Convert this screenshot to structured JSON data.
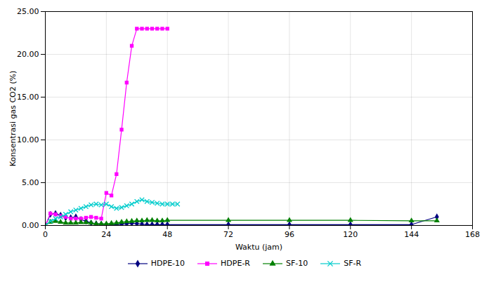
{
  "chart_data": {
    "type": "line",
    "xlabel": "Waktu (jam)",
    "ylabel": "Konsentrasi gas CO2 (%)",
    "xlim": [
      0,
      168
    ],
    "ylim": [
      0,
      25
    ],
    "xticks": [
      0,
      24,
      48,
      72,
      96,
      120,
      144,
      168
    ],
    "yticks": [
      {
        "value": 0.0,
        "label": "0.00"
      },
      {
        "value": 5.0,
        "label": "5.00"
      },
      {
        "value": 10.0,
        "label": "10.00"
      },
      {
        "value": 15.0,
        "label": "15.00"
      },
      {
        "value": 20.0,
        "label": "20.00"
      },
      {
        "value": 25.0,
        "label": "25.00"
      }
    ],
    "grid": true,
    "legend": "bottom",
    "series": [
      {
        "name": "HDPE-10",
        "color": "#000080",
        "marker": "diamond",
        "x": [
          0,
          2,
          4,
          6,
          8,
          10,
          12,
          14,
          16,
          18,
          20,
          22,
          24,
          26,
          28,
          30,
          32,
          34,
          36,
          38,
          40,
          42,
          44,
          46,
          48,
          72,
          96,
          120,
          144,
          154
        ],
        "values": [
          0.0,
          1.3,
          1.4,
          1.2,
          0.9,
          0.9,
          1.0,
          0.7,
          0.5,
          0.3,
          0.2,
          0.15,
          0.1,
          0.05,
          0.1,
          0.15,
          0.2,
          0.25,
          0.2,
          0.15,
          0.1,
          0.1,
          0.1,
          0.1,
          0.1,
          0.1,
          0.1,
          0.1,
          0.1,
          1.0
        ]
      },
      {
        "name": "HDPE-R",
        "color": "#FF00FF",
        "marker": "square",
        "x": [
          0,
          2,
          4,
          6,
          8,
          10,
          12,
          14,
          16,
          18,
          20,
          22,
          24,
          26,
          28,
          30,
          32,
          34,
          36,
          38,
          40,
          42,
          44,
          46,
          48
        ],
        "values": [
          0.0,
          1.4,
          1.3,
          1.1,
          1.0,
          0.8,
          0.8,
          0.8,
          0.9,
          1.0,
          0.9,
          0.8,
          3.8,
          3.5,
          6.0,
          11.2,
          16.7,
          21.0,
          23.0,
          23.0,
          23.0,
          23.0,
          23.0,
          23.0,
          23.0
        ]
      },
      {
        "name": "SF-10",
        "color": "#008000",
        "marker": "triangle",
        "x": [
          0,
          2,
          4,
          6,
          8,
          10,
          12,
          14,
          16,
          18,
          20,
          22,
          24,
          26,
          28,
          30,
          32,
          34,
          36,
          38,
          40,
          42,
          44,
          46,
          48,
          72,
          96,
          120,
          144,
          154
        ],
        "values": [
          0.0,
          0.4,
          0.5,
          0.4,
          0.3,
          0.3,
          0.3,
          0.35,
          0.35,
          0.3,
          0.2,
          0.2,
          0.2,
          0.25,
          0.3,
          0.4,
          0.45,
          0.5,
          0.55,
          0.55,
          0.6,
          0.6,
          0.55,
          0.55,
          0.6,
          0.6,
          0.6,
          0.6,
          0.55,
          0.55
        ]
      },
      {
        "name": "SF-R",
        "color": "#00CCCC",
        "marker": "x",
        "x": [
          0,
          2,
          4,
          6,
          8,
          10,
          12,
          14,
          16,
          18,
          20,
          22,
          24,
          26,
          28,
          30,
          32,
          34,
          36,
          38,
          40,
          42,
          44,
          46,
          48,
          50,
          52
        ],
        "values": [
          0.0,
          0.5,
          0.8,
          1.0,
          1.3,
          1.6,
          1.8,
          2.0,
          2.2,
          2.4,
          2.5,
          2.4,
          2.5,
          2.2,
          2.0,
          2.1,
          2.3,
          2.5,
          2.8,
          3.0,
          2.8,
          2.7,
          2.6,
          2.5,
          2.5,
          2.5,
          2.5
        ]
      }
    ]
  }
}
